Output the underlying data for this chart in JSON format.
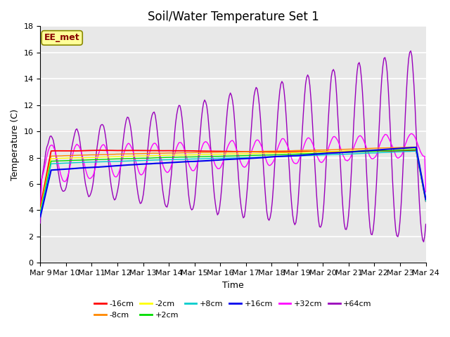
{
  "title": "Soil/Water Temperature Set 1",
  "xlabel": "Time",
  "ylabel": "Temperature (C)",
  "ylim": [
    0,
    18
  ],
  "yticks": [
    0,
    2,
    4,
    6,
    8,
    10,
    12,
    14,
    16,
    18
  ],
  "x_tick_labels": [
    "Mar 9",
    "Mar 10",
    "Mar 11",
    "Mar 12",
    "Mar 13",
    "Mar 14",
    "Mar 15",
    "Mar 16",
    "Mar 17",
    "Mar 18",
    "Mar 19",
    "Mar 20",
    "Mar 21",
    "Mar 22",
    "Mar 23",
    "Mar 24"
  ],
  "legend_labels": [
    "-16cm",
    "-8cm",
    "-2cm",
    "+2cm",
    "+8cm",
    "+16cm",
    "+32cm",
    "+64cm"
  ],
  "legend_colors": [
    "#ff0000",
    "#ff8800",
    "#ffff00",
    "#00dd00",
    "#00cccc",
    "#0000ee",
    "#ff00ff",
    "#9900bb"
  ],
  "annotation_text": "EE_met",
  "annotation_color": "#880000",
  "annotation_bg": "#ffff99",
  "annotation_edge": "#888800",
  "background_color": "#e8e8e8",
  "grid_color": "#ffffff",
  "title_fontsize": 12,
  "axis_fontsize": 9,
  "tick_fontsize": 8
}
